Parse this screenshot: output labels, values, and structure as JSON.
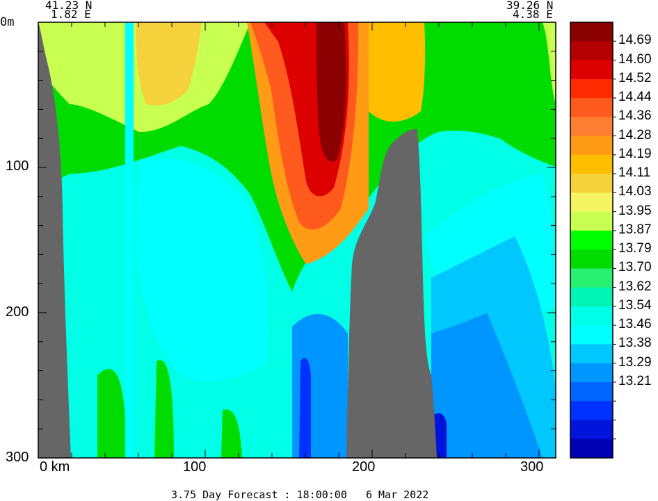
{
  "header": {
    "left_lat": "41.23 N",
    "left_lon": "1.82 E",
    "right_lat": "39.26 N",
    "right_lon": "4.38 E"
  },
  "footer": {
    "caption": "3.75 Day Forecast : 18:00:00   6 Mar 2022"
  },
  "chart_data": {
    "type": "heatmap",
    "title": "",
    "xlabel": "km",
    "ylabel": "",
    "xlim": [
      0,
      310
    ],
    "ylim": [
      300,
      0
    ],
    "x_ticks": [
      {
        "value": 0,
        "label": "0 km"
      },
      {
        "value": 100,
        "label": "100"
      },
      {
        "value": 200,
        "label": "200"
      },
      {
        "value": 300,
        "label": "300"
      }
    ],
    "y_ticks": [
      {
        "value": 0,
        "label": "0m"
      },
      {
        "value": 100,
        "label": "100"
      },
      {
        "value": 200,
        "label": "200"
      },
      {
        "value": 300,
        "label": "300"
      }
    ],
    "colorbar": {
      "levels": [
        "14.69",
        "14.60",
        "14.52",
        "14.44",
        "14.36",
        "14.28",
        "14.19",
        "14.11",
        "14.03",
        "13.95",
        "13.87",
        "13.79",
        "13.70",
        "13.62",
        "13.54",
        "13.46",
        "13.38",
        "13.29",
        "13.21"
      ],
      "colors": [
        "#8b0000",
        "#b40000",
        "#dc0000",
        "#ff2a00",
        "#ff5a1e",
        "#ff7f32",
        "#ff9b14",
        "#ffbe00",
        "#f5d23c",
        "#f5f564",
        "#c8ff50",
        "#00ff00",
        "#00dc00",
        "#28f070",
        "#00f5b4",
        "#00ffe6",
        "#00ffff",
        "#00c8ff",
        "#0096ff",
        "#0064ff",
        "#0032ff",
        "#0014dc",
        "#0000b4"
      ],
      "low_end_colors_shown": 23
    },
    "land_color": "#666666"
  }
}
